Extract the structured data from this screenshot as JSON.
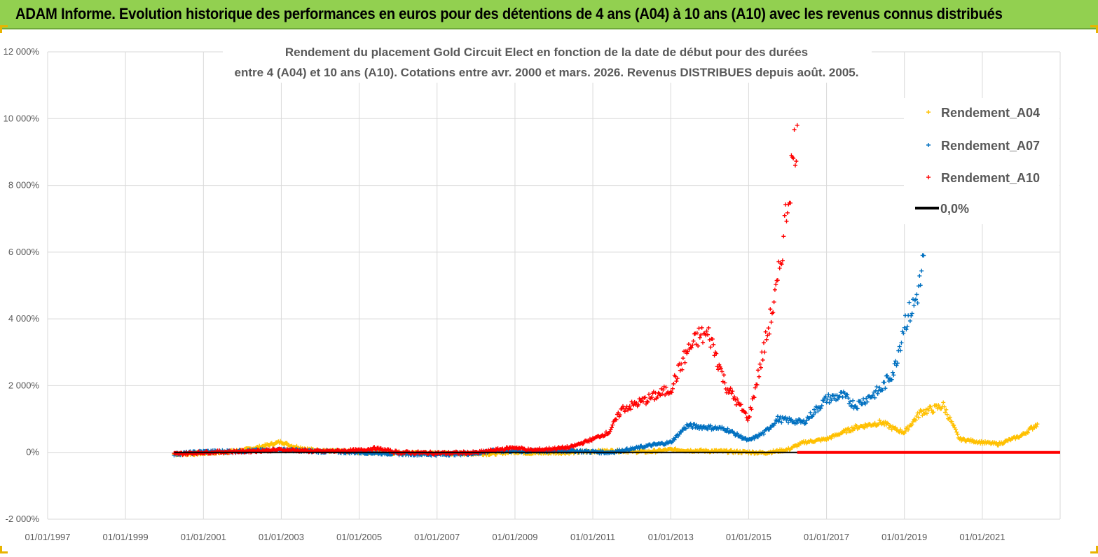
{
  "header": {
    "title": "ADAM Informe. Evolution historique des performances en euros pour des détentions de 4 ans (A04) à 10 ans (A10) avec les revenus connus distribués"
  },
  "colors": {
    "banner": "#92d050",
    "A04": "#ffc000",
    "A07": "#0070c0",
    "A10": "#ff0000",
    "zero": "#000000",
    "grid": "#d9d9d9"
  },
  "chart_data": {
    "type": "scatter",
    "title_lines": [
      "Rendement du placement Gold Circuit Elect  en fonction de la date de début pour des durées",
      "entre 4 (A04) et 10 ans (A10). Cotations entre avr. 2000 et mars. 2026. Revenus DISTRIBUES depuis août. 2005."
    ],
    "xlabel": "",
    "ylabel": "",
    "x_ticks": [
      "01/01/1997",
      "01/01/1999",
      "01/01/2001",
      "01/01/2003",
      "01/01/2005",
      "01/01/2007",
      "01/01/2009",
      "01/01/2011",
      "01/01/2013",
      "01/01/2015",
      "01/01/2017",
      "01/01/2019",
      "01/01/2021"
    ],
    "y_ticks": [
      "-2 000%",
      "0%",
      "2 000%",
      "4 000%",
      "6 000%",
      "8 000%",
      "10 000%",
      "12 000%"
    ],
    "xlim": [
      "1997-01-01",
      "2023-01-01"
    ],
    "ylim": [
      -2000,
      12000
    ],
    "grid": true,
    "legend_position": "top-right",
    "legend": [
      {
        "key": "A04",
        "label": "Rendement_A04"
      },
      {
        "key": "A07",
        "label": "Rendement_A07"
      },
      {
        "key": "A10",
        "label": "Rendement_A10"
      },
      {
        "key": "zero",
        "label": "0,0%"
      }
    ],
    "series": [
      {
        "name": "Rendement_A04",
        "key": "A04",
        "points": [
          [
            "2000-04-01",
            -50
          ],
          [
            "2000-10-01",
            -40
          ],
          [
            "2001-06-01",
            0
          ],
          [
            "2002-01-01",
            60
          ],
          [
            "2002-06-01",
            150
          ],
          [
            "2003-01-01",
            320
          ],
          [
            "2003-04-01",
            200
          ],
          [
            "2003-10-01",
            80
          ],
          [
            "2004-06-01",
            30
          ],
          [
            "2005-06-01",
            0
          ],
          [
            "2006-06-01",
            -20
          ],
          [
            "2007-06-01",
            -30
          ],
          [
            "2008-06-01",
            -40
          ],
          [
            "2009-01-01",
            20
          ],
          [
            "2009-06-01",
            -20
          ],
          [
            "2010-06-01",
            0
          ],
          [
            "2011-06-01",
            50
          ],
          [
            "2012-06-01",
            20
          ],
          [
            "2013-01-01",
            80
          ],
          [
            "2013-06-01",
            60
          ],
          [
            "2014-06-01",
            30
          ],
          [
            "2015-06-01",
            -10
          ],
          [
            "2016-01-01",
            80
          ],
          [
            "2016-06-01",
            300
          ],
          [
            "2017-01-01",
            400
          ],
          [
            "2017-06-01",
            600
          ],
          [
            "2017-10-01",
            750
          ],
          [
            "2018-06-01",
            900
          ],
          [
            "2018-10-01",
            700
          ],
          [
            "2019-01-01",
            600
          ],
          [
            "2019-06-01",
            1200
          ],
          [
            "2019-10-01",
            1300
          ],
          [
            "2020-01-01",
            1400
          ],
          [
            "2020-06-01",
            400
          ],
          [
            "2021-01-01",
            300
          ],
          [
            "2021-06-01",
            250
          ],
          [
            "2022-01-01",
            500
          ],
          [
            "2022-06-01",
            850
          ]
        ]
      },
      {
        "name": "Rendement_A07",
        "key": "A07",
        "points": [
          [
            "2000-04-01",
            -50
          ],
          [
            "2001-01-01",
            20
          ],
          [
            "2002-01-01",
            40
          ],
          [
            "2003-01-01",
            80
          ],
          [
            "2004-01-01",
            30
          ],
          [
            "2005-01-01",
            0
          ],
          [
            "2006-01-01",
            -40
          ],
          [
            "2007-01-01",
            -60
          ],
          [
            "2008-01-01",
            -30
          ],
          [
            "2008-06-01",
            50
          ],
          [
            "2009-06-01",
            30
          ],
          [
            "2010-06-01",
            50
          ],
          [
            "2011-06-01",
            0
          ],
          [
            "2012-01-01",
            100
          ],
          [
            "2012-06-01",
            200
          ],
          [
            "2013-01-01",
            300
          ],
          [
            "2013-06-01",
            800
          ],
          [
            "2014-01-01",
            750
          ],
          [
            "2014-06-01",
            700
          ],
          [
            "2015-01-01",
            350
          ],
          [
            "2015-06-01",
            600
          ],
          [
            "2015-10-01",
            1000
          ],
          [
            "2016-06-01",
            900
          ],
          [
            "2017-01-01",
            1600
          ],
          [
            "2017-06-01",
            1700
          ],
          [
            "2017-10-01",
            1400
          ],
          [
            "2018-06-01",
            1900
          ],
          [
            "2018-10-01",
            2500
          ],
          [
            "2019-01-01",
            3900
          ],
          [
            "2019-04-01",
            4400
          ],
          [
            "2019-06-01",
            5100
          ],
          [
            "2019-07-01",
            5900
          ]
        ]
      },
      {
        "name": "Rendement_A10",
        "key": "A10",
        "points": [
          [
            "2000-04-01",
            -50
          ],
          [
            "2001-01-01",
            0
          ],
          [
            "2002-01-01",
            30
          ],
          [
            "2003-01-01",
            80
          ],
          [
            "2004-01-01",
            30
          ],
          [
            "2005-01-01",
            60
          ],
          [
            "2005-06-01",
            120
          ],
          [
            "2006-01-01",
            0
          ],
          [
            "2007-01-01",
            -20
          ],
          [
            "2008-01-01",
            -10
          ],
          [
            "2009-01-01",
            150
          ],
          [
            "2009-06-01",
            60
          ],
          [
            "2010-06-01",
            150
          ],
          [
            "2011-01-01",
            400
          ],
          [
            "2011-06-01",
            600
          ],
          [
            "2011-10-01",
            1300
          ],
          [
            "2012-01-01",
            1400
          ],
          [
            "2012-06-01",
            1600
          ],
          [
            "2013-01-01",
            1900
          ],
          [
            "2013-06-01",
            3000
          ],
          [
            "2013-10-01",
            3500
          ],
          [
            "2014-01-01",
            3500
          ],
          [
            "2014-06-01",
            2000
          ],
          [
            "2015-01-01",
            1000
          ],
          [
            "2015-06-01",
            3200
          ],
          [
            "2015-10-01",
            5000
          ],
          [
            "2016-01-01",
            7500
          ],
          [
            "2016-04-01",
            9800
          ]
        ]
      },
      {
        "name": "0,0%",
        "key": "zero",
        "points": [
          [
            "2000-04-01",
            0
          ],
          [
            "2023-01-01",
            0
          ]
        ]
      }
    ]
  }
}
